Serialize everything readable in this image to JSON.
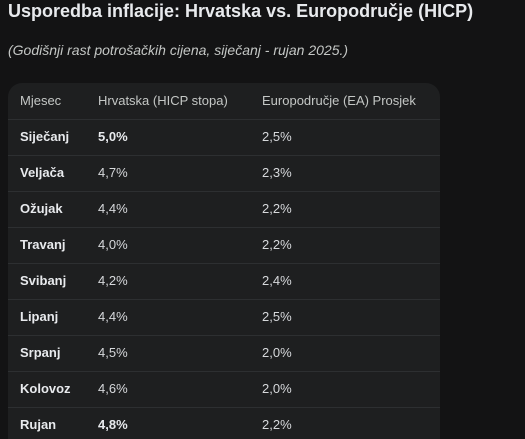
{
  "title": "Usporedba inflacije: Hrvatska vs. Europodručje (HICP)",
  "subtitle": "(Godišnji rast potrošačkih cijena, siječanj - rujan 2025.)",
  "table": {
    "headers": [
      "Mjesec",
      "Hrvatska (HICP stopa)",
      "Europodručje (EA) Prosjek"
    ],
    "rows": [
      {
        "month": "Siječanj",
        "hr": "5,0%",
        "ea": "2,5%",
        "hr_bold": true
      },
      {
        "month": "Veljača",
        "hr": "4,7%",
        "ea": "2,3%",
        "hr_bold": false
      },
      {
        "month": "Ožujak",
        "hr": "4,4%",
        "ea": "2,2%",
        "hr_bold": false
      },
      {
        "month": "Travanj",
        "hr": "4,0%",
        "ea": "2,2%",
        "hr_bold": false
      },
      {
        "month": "Svibanj",
        "hr": "4,2%",
        "ea": "2,4%",
        "hr_bold": false
      },
      {
        "month": "Lipanj",
        "hr": "4,4%",
        "ea": "2,5%",
        "hr_bold": false
      },
      {
        "month": "Srpanj",
        "hr": "4,5%",
        "ea": "2,0%",
        "hr_bold": false
      },
      {
        "month": "Kolovoz",
        "hr": "4,6%",
        "ea": "2,0%",
        "hr_bold": false
      },
      {
        "month": "Rujan",
        "hr": "4,8%",
        "ea": "2,2%",
        "hr_bold": true
      }
    ]
  }
}
